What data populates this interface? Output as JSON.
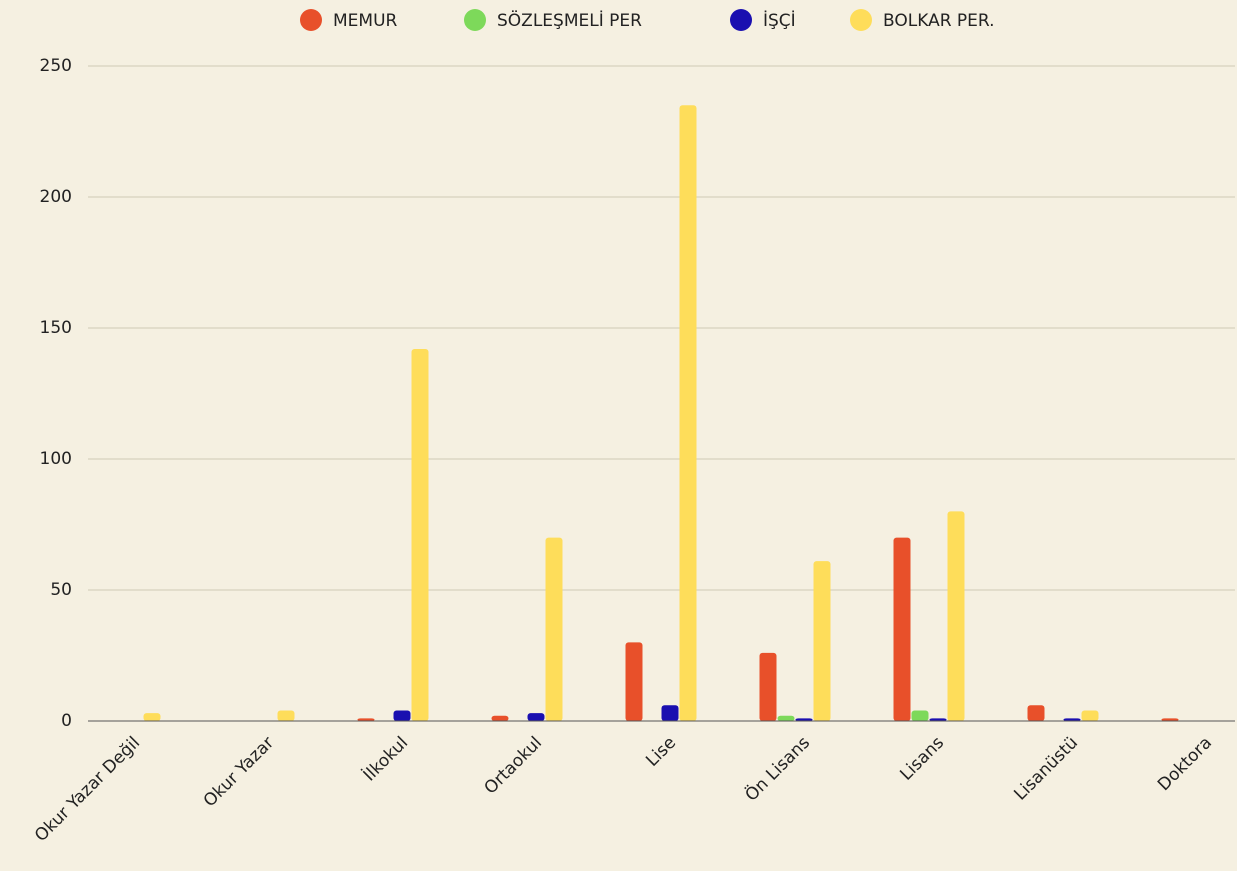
{
  "chart_data": {
    "type": "bar",
    "categories": [
      "Okur Yazar Değil",
      "Okur Yazar",
      "İlkokul",
      "Ortaokul",
      "Lise",
      "Ön Lisans",
      "Lisans",
      "Lisanüstü",
      "Doktora"
    ],
    "series": [
      {
        "name": "MEMUR",
        "color": "#e8502a",
        "values": [
          0,
          0,
          1,
          2,
          30,
          26,
          70,
          6,
          1
        ]
      },
      {
        "name": "SÖZLEŞMELİ PER",
        "color": "#7dd95a",
        "values": [
          0,
          0,
          0,
          0,
          0,
          2,
          4,
          0,
          0
        ]
      },
      {
        "name": "İŞÇİ",
        "color": "#1a0fb0",
        "values": [
          0,
          0,
          4,
          3,
          6,
          1,
          1,
          1,
          0
        ]
      },
      {
        "name": "BOLKAR PER.",
        "color": "#fedd5a",
        "values": [
          3,
          4,
          142,
          70,
          235,
          61,
          80,
          4,
          0
        ]
      }
    ],
    "ylim": [
      0,
      250
    ],
    "yticks": [
      0,
      50,
      100,
      150,
      200,
      250
    ],
    "grid": true,
    "legend": "top"
  }
}
